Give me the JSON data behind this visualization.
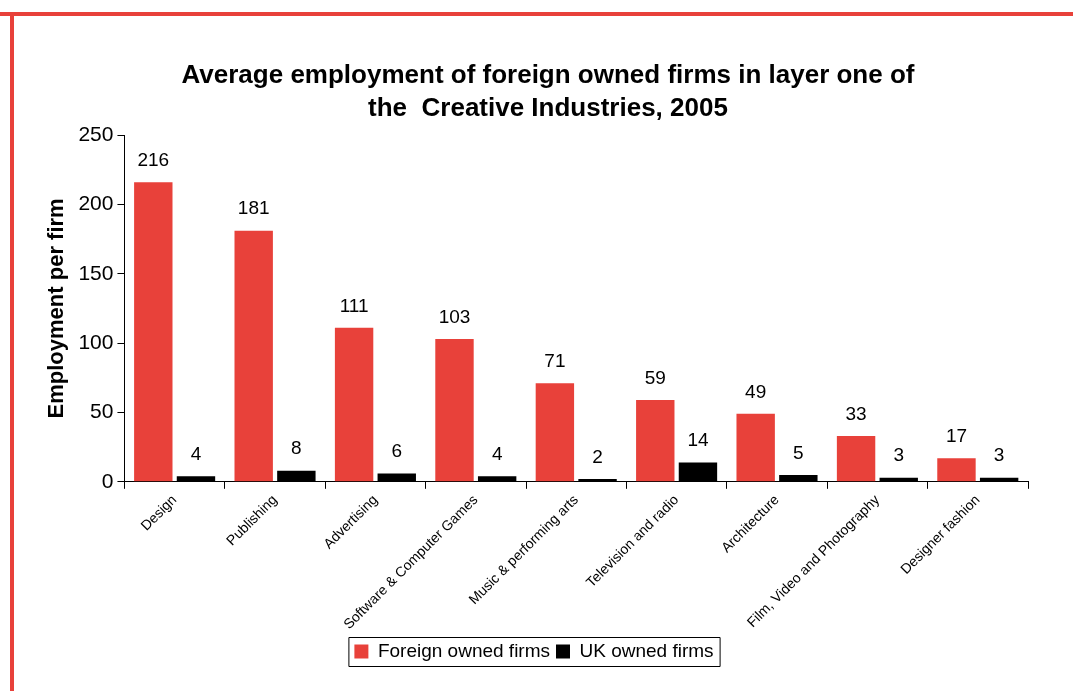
{
  "chart_data": {
    "type": "bar",
    "title": "Average employment of foreign owned firms in layer one of the  Creative Industries, 2005",
    "ylabel": "Employment per firm",
    "categories": [
      "Design",
      "Publishing",
      "Advertising",
      "Software & Computer Games",
      "Music & performing arts",
      "Television and radio",
      "Architecture",
      "Film, Video and Photography",
      "Designer fashion"
    ],
    "series": [
      {
        "name": "Foreign owned firms",
        "color": "#e8413a",
        "values": [
          216,
          181,
          111,
          103,
          71,
          59,
          49,
          33,
          17
        ]
      },
      {
        "name": "UK owned firms",
        "color": "#000000",
        "values": [
          4,
          8,
          6,
          4,
          2,
          14,
          5,
          3,
          3
        ]
      }
    ],
    "ylim": [
      0,
      250
    ],
    "yticks": [
      0,
      50,
      100,
      150,
      200,
      250
    ],
    "data_labels": true,
    "legend": "bottom"
  }
}
